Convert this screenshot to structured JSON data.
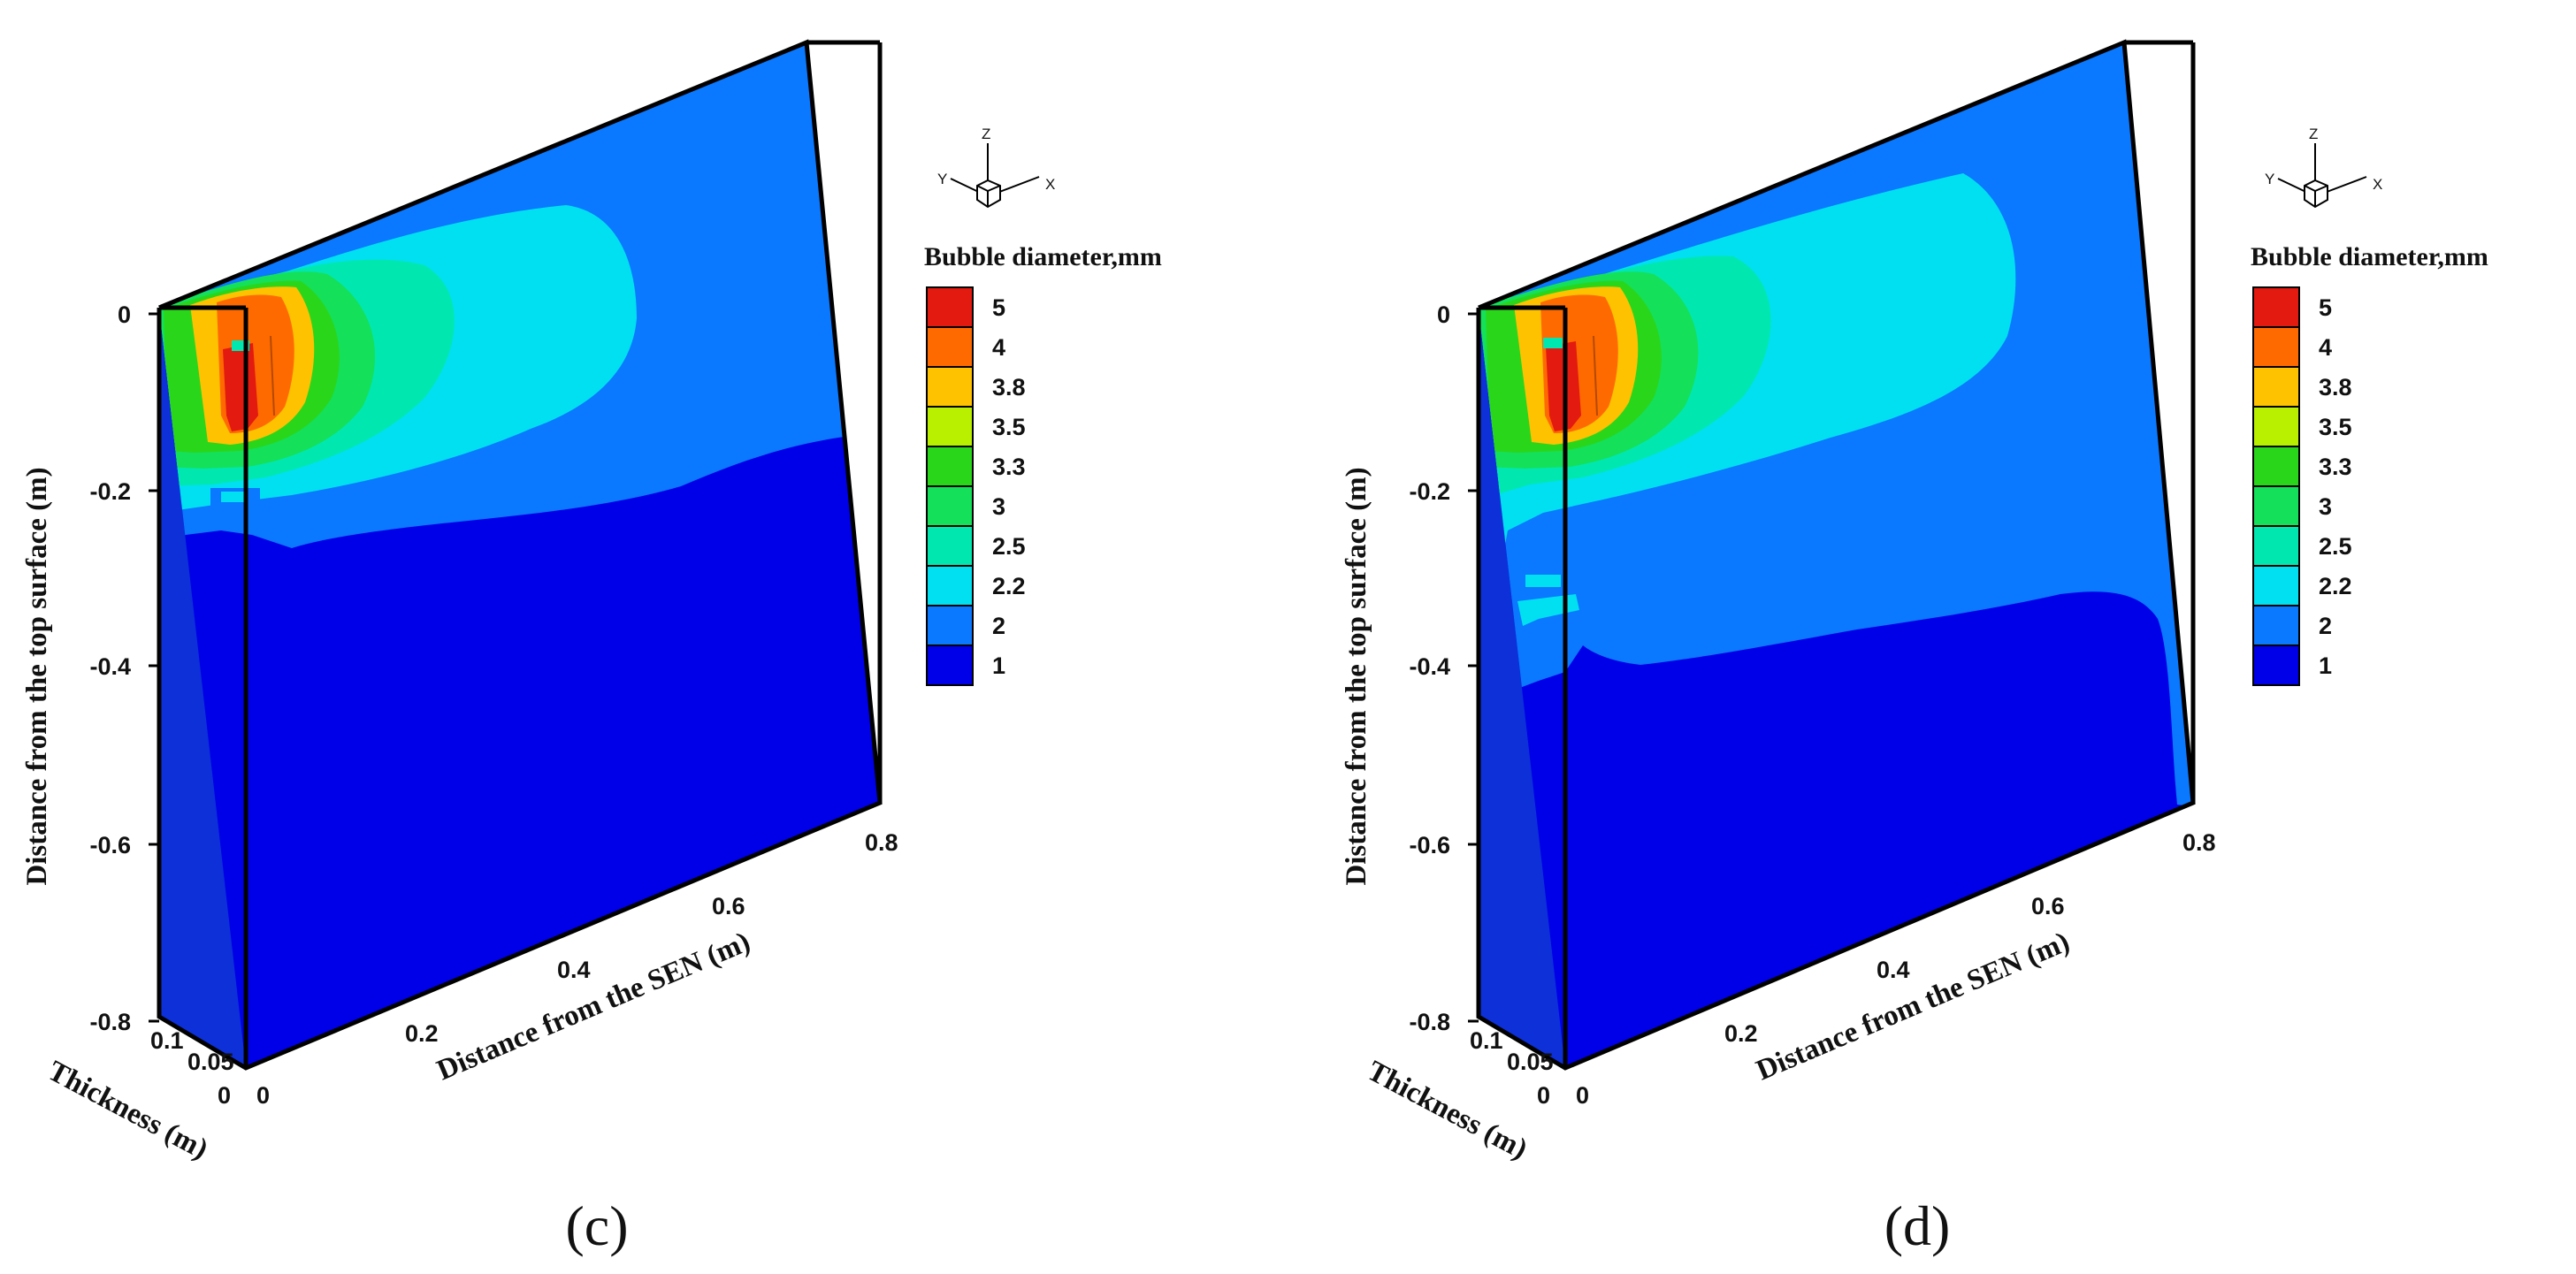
{
  "chart_data": [
    {
      "type": "heatmap",
      "panel_label": "(c)",
      "variable": "Bubble diameter,mm",
      "zlabel": "Distance from the top surface (m)",
      "xlabel": "Distance from the SEN (m)",
      "ylabel": "Thickness (m)",
      "z_ticks": [
        "0",
        "-0.2",
        "-0.4",
        "-0.6",
        "-0.8"
      ],
      "x_ticks": [
        "0",
        "0.2",
        "0.4",
        "0.6",
        "0.8"
      ],
      "y_ticks": [
        "0.1",
        "0.05",
        "0"
      ],
      "legend_levels": [
        "5",
        "4",
        "3.8",
        "3.5",
        "3.3",
        "3",
        "2.5",
        "2.2",
        "2",
        "1"
      ],
      "triad": [
        "Z",
        "Y",
        "X"
      ]
    },
    {
      "type": "heatmap",
      "panel_label": "(d)",
      "variable": "Bubble diameter,mm",
      "zlabel": "Distance from the top surface (m)",
      "xlabel": "Distance from the SEN (m)",
      "ylabel": "Thickness (m)",
      "z_ticks": [
        "0",
        "-0.2",
        "-0.4",
        "-0.6",
        "-0.8"
      ],
      "x_ticks": [
        "0",
        "0.2",
        "0.4",
        "0.6",
        "0.8"
      ],
      "y_ticks": [
        "0.1",
        "0.05",
        "0"
      ],
      "legend_levels": [
        "5",
        "4",
        "3.8",
        "3.5",
        "3.3",
        "3",
        "2.5",
        "2.2",
        "2",
        "1"
      ],
      "triad": [
        "Z",
        "Y",
        "X"
      ]
    }
  ],
  "colors": {
    "level_5": "#e31a10",
    "level_4": "#ff6a00",
    "level_3_8": "#ffc200",
    "level_3_5": "#b8f000",
    "level_3_3": "#2ad61a",
    "level_3": "#14e05a",
    "level_2_5": "#00e8b0",
    "level_2_2": "#00e0f0",
    "level_2": "#0a78ff",
    "level_1": "#0000e8",
    "side_face": "#0d30d8"
  }
}
